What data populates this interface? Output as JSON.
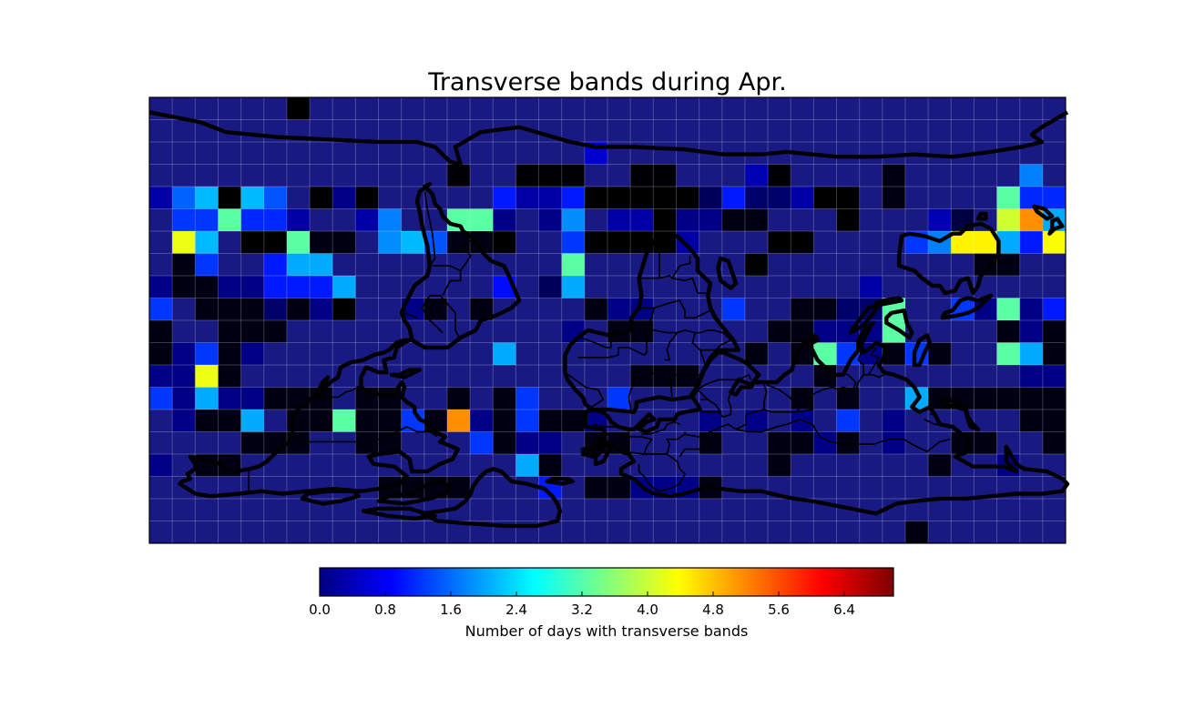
{
  "chart_data": {
    "type": "heatmap",
    "title": "Transverse bands during Apr.",
    "projection": "equirectangular",
    "lon_range": [
      -180,
      180
    ],
    "lat_range": [
      -90,
      90
    ],
    "cell_size_deg": 9,
    "grid": true,
    "colormap": "jet",
    "colorbar": {
      "label": "Number of days with transverse bands",
      "range": [
        0,
        7
      ],
      "ticks": [
        "0.0",
        "0.8",
        "1.6",
        "2.4",
        "3.2",
        "4.0",
        "4.8",
        "5.6",
        "6.4"
      ],
      "placement": "bottom"
    },
    "cells_note": "Rows from north (90N) to south (90S), each row 40 cells from 180W eastward; values in days.",
    "cells": [
      [
        0,
        0,
        0,
        0,
        0,
        0,
        0.8,
        0,
        0,
        0,
        0,
        0,
        0,
        0,
        0,
        0,
        0,
        0,
        0,
        0,
        0,
        0,
        0,
        0,
        0,
        0,
        0,
        0,
        0,
        0,
        0,
        0,
        0,
        0,
        0,
        0,
        0,
        0,
        0,
        0
      ],
      [
        0,
        0,
        0,
        0,
        0,
        0,
        0,
        0,
        0,
        0,
        0,
        0,
        0,
        0,
        0,
        0,
        0,
        0,
        0,
        0,
        0,
        0,
        0,
        0,
        0,
        0,
        0,
        0,
        0,
        0,
        0,
        0,
        0,
        0,
        0,
        0,
        0,
        0,
        0,
        0
      ],
      [
        0,
        0,
        0,
        0,
        0,
        0,
        0,
        0,
        0,
        0,
        0,
        0,
        0,
        0,
        0,
        0,
        0,
        0,
        0,
        2.3,
        0,
        0,
        0,
        0,
        0,
        0,
        0,
        0,
        0,
        0,
        0,
        0,
        0,
        0,
        0,
        0,
        0,
        0,
        0,
        0
      ],
      [
        0,
        0,
        0,
        0,
        0,
        0,
        0,
        0,
        0,
        0,
        0,
        0,
        0,
        0.9,
        0,
        0,
        0.9,
        0.9,
        0.9,
        0,
        0,
        0.9,
        0.9,
        0,
        0,
        0,
        2.1,
        0.9,
        0,
        0,
        0,
        0,
        1.0,
        0,
        0,
        0,
        0,
        0,
        3.5,
        0
      ],
      [
        2.0,
        3.3,
        3.9,
        0.8,
        3.9,
        3.2,
        0,
        0.8,
        1.8,
        0.8,
        0,
        0,
        0,
        0,
        0,
        2.8,
        2.0,
        2.0,
        2.8,
        0.8,
        0.8,
        0.8,
        0.8,
        0.8,
        1.5,
        2.8,
        1.6,
        1.6,
        2.0,
        0.8,
        0.8,
        0,
        1.0,
        0,
        0,
        0,
        0,
        5.0,
        2.9,
        2.9
      ],
      [
        0,
        3.0,
        3.0,
        5.0,
        2.9,
        2.9,
        2.0,
        0,
        0,
        2.0,
        3.5,
        0,
        0,
        5.0,
        5.0,
        1.8,
        0,
        1.8,
        3.6,
        0,
        2.0,
        2.0,
        0.8,
        1.8,
        1.8,
        1.0,
        1.0,
        0,
        0,
        0,
        0.8,
        0,
        0,
        0,
        2.1,
        1.3,
        0,
        5.8,
        6.9,
        3.8
      ],
      [
        0,
        6.0,
        3.9,
        0,
        0.8,
        0.8,
        5.0,
        1.0,
        1.0,
        0,
        3.6,
        3.9,
        3.2,
        1.0,
        1.0,
        0.8,
        0,
        0,
        3.0,
        0.8,
        0.8,
        0.8,
        0.8,
        2.0,
        0,
        0,
        0,
        0.8,
        0.8,
        0,
        0,
        0,
        0,
        3.0,
        3.5,
        6.2,
        6.2,
        3.8,
        2.8,
        6.1
      ],
      [
        0,
        1.0,
        3.0,
        0,
        0,
        2.8,
        3.8,
        3.8,
        0,
        0,
        0,
        0,
        0,
        0,
        0,
        0,
        0,
        0,
        5.0,
        0,
        0,
        0,
        0,
        0,
        0,
        0,
        0.8,
        0,
        0,
        0,
        0,
        0,
        0,
        0,
        0,
        0,
        1.0,
        1.0,
        0,
        0
      ],
      [
        1.8,
        1.0,
        1.0,
        1.8,
        1.8,
        2.8,
        2.8,
        2.8,
        3.8,
        0,
        0,
        0,
        0,
        0,
        0,
        2.7,
        0,
        1.5,
        3.8,
        0,
        0,
        0,
        0,
        0,
        0,
        0,
        0,
        0,
        0,
        0,
        0,
        2.0,
        0,
        0,
        0,
        0,
        0,
        0,
        0,
        0
      ],
      [
        3.0,
        0,
        1.0,
        1.0,
        1.0,
        1.6,
        1.0,
        1.8,
        0.8,
        0,
        0,
        1.8,
        1.0,
        0,
        1.0,
        0,
        0,
        0,
        0,
        1.0,
        1.8,
        1.8,
        0,
        0,
        0,
        3.0,
        0,
        0,
        1.0,
        1.0,
        1.6,
        1.6,
        5.0,
        0,
        0,
        3.0,
        1.8,
        5.0,
        1.8,
        2.8
      ],
      [
        1.0,
        0,
        0,
        1.0,
        1.0,
        1.0,
        0,
        0,
        0,
        0,
        0,
        0,
        0,
        0,
        0,
        0,
        0,
        0,
        1.8,
        0,
        1.0,
        1.0,
        0,
        0,
        0,
        0,
        0,
        1.0,
        1.0,
        1.8,
        1.8,
        1.8,
        5.0,
        0,
        0,
        0,
        0,
        1.0,
        1.8,
        1.0
      ],
      [
        1.0,
        1.8,
        3.0,
        1.0,
        1.8,
        0,
        0,
        0,
        0,
        0,
        0,
        0,
        0,
        0,
        0,
        3.8,
        0,
        0,
        0,
        0,
        0,
        0,
        0,
        0,
        0,
        0,
        1.0,
        0,
        1.0,
        5.0,
        3.0,
        1.8,
        1.0,
        3.0,
        1.0,
        0,
        0,
        5.0,
        3.8,
        1.0
      ],
      [
        1.8,
        1.8,
        6.0,
        1.0,
        0,
        0,
        0,
        0,
        0,
        0,
        0,
        0,
        0,
        0,
        0,
        0,
        0,
        0,
        0,
        0,
        0,
        1.0,
        1.0,
        1.0,
        0,
        0,
        0,
        0,
        0,
        1.0,
        0,
        0,
        0,
        0,
        0,
        0,
        0,
        0,
        1.8,
        1.8
      ],
      [
        3.0,
        1.8,
        3.8,
        1.8,
        1.8,
        1.0,
        1.0,
        1.0,
        0,
        1.0,
        1.0,
        0,
        0,
        1.0,
        0,
        1.0,
        3.0,
        0,
        0,
        0,
        3.0,
        0,
        0,
        0,
        0,
        0,
        0,
        0,
        1.0,
        0,
        1.0,
        0,
        0,
        3.8,
        1.0,
        1.0,
        1.0,
        1.0,
        1.0,
        1.0
      ],
      [
        0,
        1.8,
        1.0,
        1.0,
        3.8,
        0,
        1.0,
        1.0,
        5.0,
        1.0,
        1.0,
        3.0,
        1.0,
        6.9,
        1.8,
        1.0,
        3.0,
        1.0,
        1.0,
        1.8,
        0,
        0,
        0,
        0,
        1.8,
        0,
        1.8,
        0,
        1.8,
        0,
        3.0,
        0,
        1.8,
        0,
        0,
        0,
        0,
        0,
        1.0,
        1.0
      ],
      [
        0,
        0,
        0,
        0,
        1.0,
        1.0,
        1.0,
        0,
        0,
        1.0,
        1.0,
        0,
        0,
        0,
        3.0,
        1.0,
        1.8,
        1.8,
        0,
        1.0,
        1.0,
        0,
        0,
        0,
        1.0,
        0,
        0,
        1.0,
        1.0,
        1.8,
        1.0,
        0,
        1.8,
        0,
        0,
        1.0,
        1.0,
        0,
        0,
        1.0
      ],
      [
        1.8,
        0,
        1.0,
        1.0,
        0,
        0,
        0,
        0,
        0,
        0,
        0,
        0,
        0,
        0,
        0,
        0,
        3.8,
        1.0,
        0,
        0,
        0,
        0,
        0,
        0,
        0,
        0,
        0,
        1.0,
        0,
        0,
        0,
        0,
        0,
        0,
        1.0,
        0,
        0,
        1.8,
        0,
        0
      ],
      [
        0,
        0,
        0,
        0,
        0,
        0,
        0,
        0,
        0,
        0,
        1.0,
        1.0,
        1.0,
        1.0,
        0,
        0,
        0,
        2.8,
        0,
        1.0,
        1.0,
        1.8,
        1.8,
        1.8,
        1.0,
        0,
        0,
        0,
        0,
        0,
        0,
        0,
        0,
        0,
        0,
        0,
        0,
        0,
        0,
        0
      ],
      [
        0,
        0,
        0,
        0,
        0,
        0,
        0,
        0,
        0,
        0,
        0,
        0,
        0,
        0,
        0,
        0,
        0,
        0,
        0,
        0,
        0,
        0,
        0,
        0,
        0,
        0,
        0,
        0,
        0,
        0,
        0,
        0,
        0,
        0,
        0,
        0,
        0,
        0,
        0,
        0
      ],
      [
        0,
        0,
        0,
        0,
        0,
        0,
        0,
        0,
        0,
        0,
        0,
        0,
        0,
        0,
        0,
        0,
        0,
        0,
        0,
        0,
        0,
        0,
        0,
        0,
        0,
        0,
        0,
        0,
        0,
        0,
        0,
        0,
        0,
        1.0,
        0,
        0,
        0,
        0,
        0,
        0
      ]
    ]
  }
}
